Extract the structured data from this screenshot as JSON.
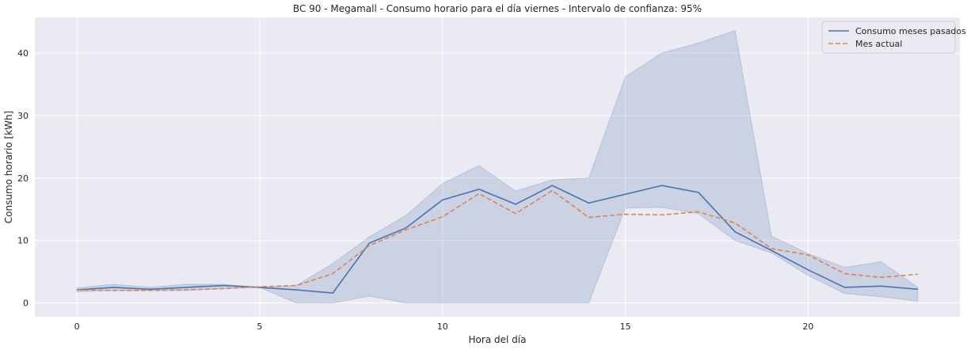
{
  "chart_data": {
    "type": "line",
    "title": "BC 90 - Megamall - Consumo horario para el día viernes - Intervalo de confianza: 95%",
    "xlabel": "Hora del día",
    "ylabel": "Consumo horario [kWh]",
    "xlim": [
      -1.15,
      24.15
    ],
    "ylim": [
      -2.2,
      45.7
    ],
    "xticks": [
      0,
      5,
      10,
      15,
      20
    ],
    "yticks": [
      0,
      10,
      20,
      30,
      40
    ],
    "grid": true,
    "legend_position": "top-right",
    "x": [
      0,
      1,
      2,
      3,
      4,
      5,
      6,
      7,
      8,
      9,
      10,
      11,
      12,
      13,
      14,
      15,
      16,
      17,
      18,
      19,
      20,
      21,
      22,
      23
    ],
    "series": [
      {
        "name": "Consumo meses pasados",
        "style": "solid",
        "color": "#4c72b0",
        "values": [
          2.1,
          2.5,
          2.2,
          2.5,
          2.8,
          2.5,
          2.1,
          1.6,
          9.6,
          12.0,
          16.5,
          18.2,
          15.8,
          18.8,
          16.0,
          17.4,
          18.8,
          17.7,
          11.4,
          8.4,
          5.3,
          2.5,
          2.7,
          2.2
        ],
        "ci_lower": [
          1.8,
          2.0,
          2.0,
          2.0,
          2.3,
          2.5,
          0.0,
          0.0,
          1.1,
          0.0,
          0.0,
          0.0,
          0.0,
          0.0,
          0.0,
          15.2,
          15.3,
          14.3,
          10.0,
          8.0,
          4.4,
          1.5,
          1.0,
          0.3
        ],
        "ci_upper": [
          2.4,
          3.0,
          2.5,
          3.0,
          3.0,
          2.5,
          2.8,
          6.3,
          10.6,
          14.0,
          19.1,
          22.0,
          17.9,
          19.7,
          20.0,
          36.2,
          40.0,
          41.6,
          43.6,
          10.7,
          7.9,
          5.7,
          6.6,
          2.5
        ]
      },
      {
        "name": "Mes actual",
        "style": "dashed",
        "color": "#dd8452",
        "values": [
          2.1,
          2.0,
          2.0,
          2.1,
          2.3,
          2.6,
          2.8,
          4.7,
          9.2,
          11.7,
          13.8,
          17.5,
          14.3,
          18.0,
          13.7,
          14.2,
          14.1,
          14.6,
          12.8,
          8.7,
          7.7,
          4.7,
          4.1,
          4.6
        ]
      }
    ],
    "colors": {
      "background": "#eaeaf2",
      "grid": "#ffffff",
      "ci_fill": "#4c72b0"
    }
  }
}
